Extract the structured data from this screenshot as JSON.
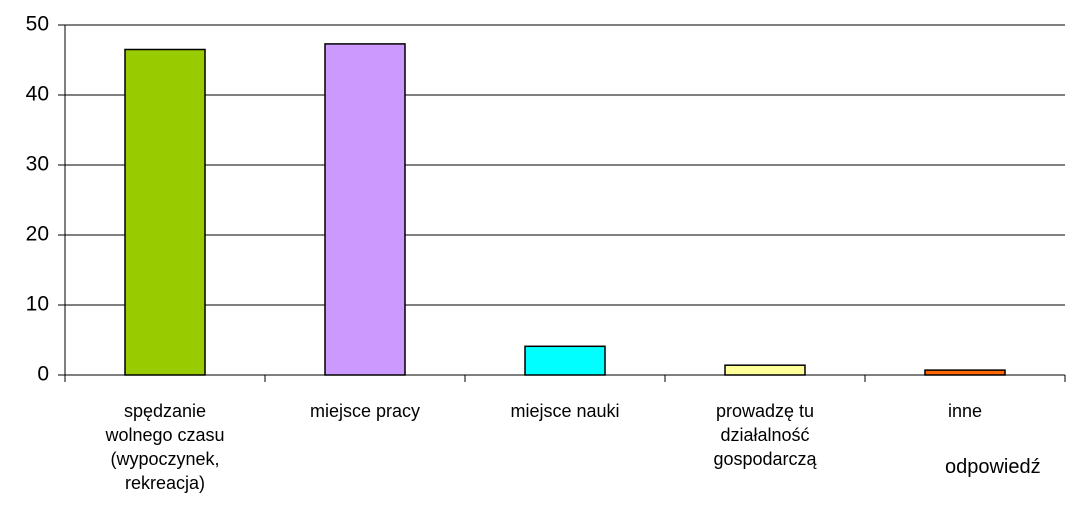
{
  "chart_data": {
    "type": "bar",
    "x_label": "odpowiedź",
    "categories": [
      "spędzanie wolnego czasu (wypoczynek, rekreacja)",
      "miejsce pracy",
      "miejsce nauki",
      "prowadzę tu działalność gospodarczą",
      "inne"
    ],
    "values": [
      46.5,
      47.3,
      4.1,
      1.4,
      0.7
    ],
    "colors": [
      "#99cc00",
      "#cc99ff",
      "#00ffff",
      "#ffff99",
      "#ff6600"
    ],
    "ylim": [
      0,
      50
    ],
    "yticks": [
      0,
      10,
      20,
      30,
      40,
      50
    ],
    "grid": true
  }
}
